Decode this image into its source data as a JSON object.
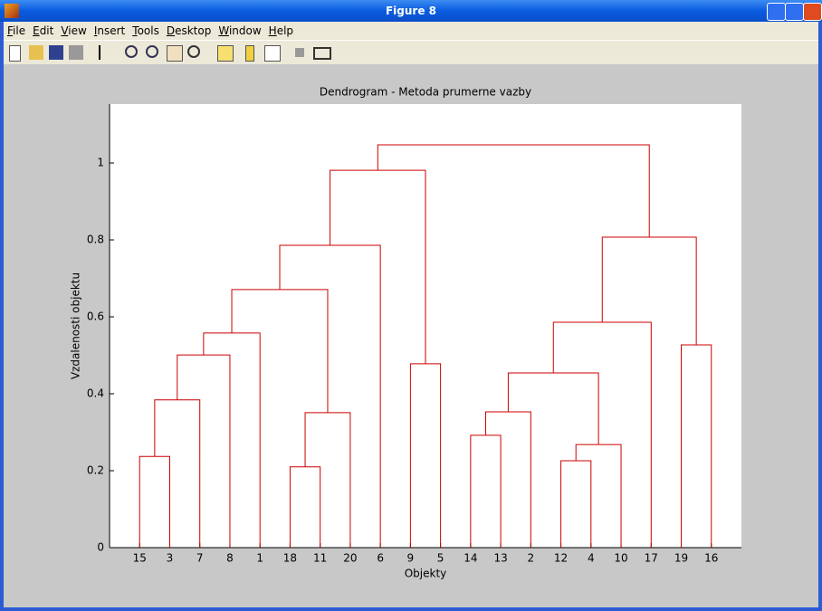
{
  "window": {
    "title": "Figure 8",
    "menu": [
      "File",
      "Edit",
      "View",
      "Insert",
      "Tools",
      "Desktop",
      "Window",
      "Help"
    ]
  },
  "chart_data": {
    "type": "dendrogram",
    "title": "Dendrogram - Metoda prumerne vazby",
    "x_label": "Objekty",
    "y_label": "Vzdalenosti objektu",
    "categories": [
      "15",
      "3",
      "7",
      "8",
      "1",
      "18",
      "11",
      "20",
      "6",
      "9",
      "5",
      "14",
      "13",
      "2",
      "12",
      "4",
      "10",
      "17",
      "19",
      "16"
    ],
    "merges": [
      {
        "left": 0,
        "right": 1,
        "height": 0.237
      },
      {
        "left": 5,
        "right": 6,
        "height": 0.21
      },
      {
        "left": 14,
        "right": 15,
        "height": 0.226
      },
      {
        "left": 22,
        "right": 16,
        "height": 0.268
      },
      {
        "left": 11,
        "right": 12,
        "height": 0.292
      },
      {
        "left": 24,
        "right": 13,
        "height": 0.353
      },
      {
        "left": 21,
        "right": 7,
        "height": 0.351
      },
      {
        "left": 20,
        "right": 2,
        "height": 0.384
      },
      {
        "left": 25,
        "right": 23,
        "height": 0.454
      },
      {
        "left": 9,
        "right": 10,
        "height": 0.478
      },
      {
        "left": 27,
        "right": 3,
        "height": 0.501
      },
      {
        "left": 18,
        "right": 19,
        "height": 0.527
      },
      {
        "left": 30,
        "right": 4,
        "height": 0.558
      },
      {
        "left": 28,
        "right": 17,
        "height": 0.586
      },
      {
        "left": 32,
        "right": 26,
        "height": 0.671
      },
      {
        "left": 34,
        "right": 8,
        "height": 0.786
      },
      {
        "left": 33,
        "right": 31,
        "height": 0.807
      },
      {
        "left": 35,
        "right": 29,
        "height": 0.981
      },
      {
        "left": 37,
        "right": 36,
        "height": 1.047
      }
    ],
    "color": "#cc0000",
    "ylim": [
      0,
      1.153
    ],
    "yticks": [
      0,
      0.2,
      0.4,
      0.6,
      0.8,
      1
    ]
  }
}
